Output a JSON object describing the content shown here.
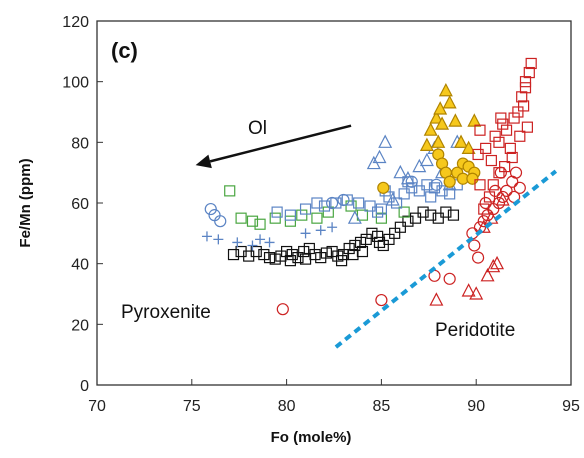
{
  "chart_data": {
    "type": "scatter",
    "panel_label": "(c)",
    "xlabel": "Fo (mole%)",
    "ylabel": "Fe/Mn (ppm)",
    "xlim": [
      70,
      95
    ],
    "ylim": [
      0,
      120
    ],
    "x_ticks": [
      "70",
      "75",
      "80",
      "85",
      "90",
      "95"
    ],
    "y_ticks": [
      "0",
      "20",
      "40",
      "60",
      "80",
      "100",
      "120"
    ],
    "grid": false,
    "legend": "none",
    "annotations": {
      "ol": "Ol",
      "pyroxenite": "Pyroxenite",
      "peridotite": "Peridotite"
    },
    "arrow": {
      "from": [
        83.4,
        85.5
      ],
      "to": [
        75.2,
        72.5
      ],
      "color": "#111111"
    },
    "divider_line": {
      "from": [
        82.6,
        12.5
      ],
      "to": [
        94.2,
        70.5
      ],
      "color": "#1a9ad6",
      "style": "dashed"
    },
    "series": [
      {
        "marker": "square",
        "color": "#111111",
        "points": [
          [
            77.2,
            43
          ],
          [
            77.6,
            44
          ],
          [
            78.0,
            42.5
          ],
          [
            78.4,
            44
          ],
          [
            78.8,
            43
          ],
          [
            79.1,
            42
          ],
          [
            79.4,
            41.5
          ],
          [
            79.7,
            42.5
          ],
          [
            80.0,
            44
          ],
          [
            80.3,
            43
          ],
          [
            80.6,
            42
          ],
          [
            80.9,
            44
          ],
          [
            81.2,
            45
          ],
          [
            81.5,
            43
          ],
          [
            81.8,
            42
          ],
          [
            82.1,
            43.5
          ],
          [
            82.4,
            44
          ],
          [
            82.7,
            42.5
          ],
          [
            83.0,
            43
          ],
          [
            83.3,
            45
          ],
          [
            83.6,
            46
          ],
          [
            83.9,
            47
          ],
          [
            84.2,
            48
          ],
          [
            84.5,
            50
          ],
          [
            84.8,
            49
          ],
          [
            85.1,
            46
          ],
          [
            85.4,
            48
          ],
          [
            85.7,
            50
          ],
          [
            86.0,
            52
          ],
          [
            86.4,
            54
          ],
          [
            86.8,
            55
          ],
          [
            87.2,
            57
          ],
          [
            87.6,
            56
          ],
          [
            88.0,
            55
          ],
          [
            88.4,
            57
          ],
          [
            88.8,
            56
          ],
          [
            80.2,
            41
          ],
          [
            81.0,
            41.5
          ],
          [
            82.9,
            41
          ],
          [
            84.0,
            44
          ],
          [
            84.9,
            47
          ],
          [
            83.5,
            43
          ]
        ]
      },
      {
        "marker": "square",
        "color": "#4aa641",
        "points": [
          [
            77.0,
            64
          ],
          [
            77.6,
            55
          ],
          [
            78.2,
            54
          ],
          [
            78.6,
            53
          ],
          [
            79.4,
            55
          ],
          [
            80.2,
            54
          ],
          [
            80.8,
            56
          ],
          [
            81.6,
            55
          ],
          [
            82.2,
            57
          ],
          [
            83.4,
            59
          ],
          [
            84.0,
            56
          ],
          [
            85.0,
            55
          ],
          [
            86.2,
            57
          ]
        ]
      },
      {
        "marker": "square",
        "color": "#5b84c4",
        "points": [
          [
            79.5,
            57
          ],
          [
            80.2,
            56
          ],
          [
            81.0,
            58
          ],
          [
            81.6,
            60
          ],
          [
            82.0,
            59
          ],
          [
            82.6,
            60
          ],
          [
            83.2,
            61
          ],
          [
            83.8,
            60
          ],
          [
            84.4,
            59
          ],
          [
            85.0,
            58
          ],
          [
            85.4,
            62
          ],
          [
            85.8,
            60
          ],
          [
            86.2,
            63
          ],
          [
            86.6,
            65
          ],
          [
            87.0,
            64
          ],
          [
            87.4,
            66
          ],
          [
            87.8,
            65
          ],
          [
            88.2,
            64
          ],
          [
            88.6,
            63
          ],
          [
            89.0,
            66
          ],
          [
            86.4,
            67
          ],
          [
            87.6,
            62
          ],
          [
            85.2,
            64
          ],
          [
            84.8,
            57
          ]
        ]
      },
      {
        "marker": "circle",
        "color": "#5b84c4",
        "points": [
          [
            76.0,
            58
          ],
          [
            76.2,
            56
          ],
          [
            76.5,
            54
          ],
          [
            82.4,
            60
          ],
          [
            83.0,
            61
          ],
          [
            86.6,
            67
          ],
          [
            87.9,
            66
          ]
        ]
      },
      {
        "marker": "triangle",
        "color": "#5b84c4",
        "points": [
          [
            84.6,
            73
          ],
          [
            84.9,
            75
          ],
          [
            85.2,
            80
          ],
          [
            86.0,
            70
          ],
          [
            86.4,
            68
          ],
          [
            87.0,
            72
          ],
          [
            87.4,
            74
          ],
          [
            87.8,
            78
          ],
          [
            88.2,
            70
          ],
          [
            89.0,
            80
          ],
          [
            88.6,
            66
          ],
          [
            83.6,
            55
          ],
          [
            85.6,
            61
          ]
        ]
      },
      {
        "marker": "plus",
        "color": "#5b84c4",
        "points": [
          [
            75.8,
            49
          ],
          [
            76.4,
            48
          ],
          [
            77.4,
            47
          ],
          [
            78.2,
            46
          ],
          [
            78.6,
            48
          ],
          [
            79.1,
            47
          ],
          [
            81.0,
            50
          ],
          [
            81.8,
            51
          ],
          [
            82.4,
            52
          ]
        ]
      },
      {
        "marker": "triangle",
        "color": "#e8b80e",
        "points": [
          [
            87.6,
            84
          ],
          [
            87.9,
            88
          ],
          [
            88.2,
            86
          ],
          [
            88.4,
            97
          ],
          [
            88.6,
            93
          ],
          [
            88.1,
            91
          ],
          [
            88.9,
            87
          ],
          [
            89.2,
            80
          ],
          [
            89.6,
            78
          ],
          [
            89.9,
            87
          ],
          [
            88.0,
            80
          ],
          [
            87.4,
            79
          ]
        ]
      },
      {
        "marker": "circle",
        "color": "#e8b80e",
        "points": [
          [
            85.1,
            65
          ],
          [
            88.0,
            76
          ],
          [
            88.2,
            73
          ],
          [
            88.4,
            70
          ],
          [
            89.0,
            70
          ],
          [
            89.3,
            73
          ],
          [
            89.6,
            72
          ],
          [
            89.9,
            70
          ],
          [
            89.3,
            68
          ],
          [
            88.6,
            67
          ],
          [
            89.8,
            68
          ]
        ]
      },
      {
        "marker": "square",
        "color": "#cc2222",
        "points": [
          [
            90.2,
            84
          ],
          [
            90.5,
            78
          ],
          [
            90.8,
            74
          ],
          [
            91.0,
            82
          ],
          [
            91.2,
            80
          ],
          [
            91.4,
            86
          ],
          [
            91.6,
            84
          ],
          [
            91.8,
            78
          ],
          [
            92.0,
            88
          ],
          [
            92.2,
            90
          ],
          [
            92.4,
            95
          ],
          [
            92.6,
            100
          ],
          [
            92.8,
            103
          ],
          [
            92.9,
            106
          ],
          [
            92.5,
            92
          ],
          [
            92.7,
            85
          ],
          [
            92.3,
            82
          ],
          [
            91.9,
            75
          ],
          [
            91.5,
            72
          ],
          [
            91.2,
            70
          ],
          [
            90.9,
            66
          ],
          [
            90.7,
            62
          ],
          [
            90.4,
            58
          ],
          [
            90.2,
            66
          ],
          [
            90.1,
            76
          ],
          [
            91.3,
            88
          ],
          [
            92.6,
            98
          ]
        ]
      },
      {
        "marker": "circle",
        "color": "#cc2222",
        "points": [
          [
            88.6,
            35
          ],
          [
            89.9,
            46
          ],
          [
            90.2,
            52
          ],
          [
            90.4,
            54
          ],
          [
            90.6,
            56
          ],
          [
            90.9,
            58
          ],
          [
            91.2,
            60
          ],
          [
            91.4,
            62
          ],
          [
            91.6,
            64
          ],
          [
            91.9,
            67
          ],
          [
            92.1,
            70
          ],
          [
            92.3,
            65
          ],
          [
            90.1,
            42
          ],
          [
            89.8,
            50
          ],
          [
            90.5,
            60
          ],
          [
            91.0,
            64
          ],
          [
            79.8,
            25
          ],
          [
            85.0,
            28
          ],
          [
            87.8,
            36
          ],
          [
            91.3,
            70
          ],
          [
            92.0,
            62
          ]
        ]
      },
      {
        "marker": "triangle",
        "color": "#cc2222",
        "points": [
          [
            89.6,
            31
          ],
          [
            90.0,
            30
          ],
          [
            90.6,
            36
          ],
          [
            90.9,
            39
          ],
          [
            91.1,
            40
          ],
          [
            90.4,
            52
          ],
          [
            90.8,
            55
          ],
          [
            91.4,
            61
          ],
          [
            87.9,
            28
          ]
        ]
      }
    ]
  }
}
